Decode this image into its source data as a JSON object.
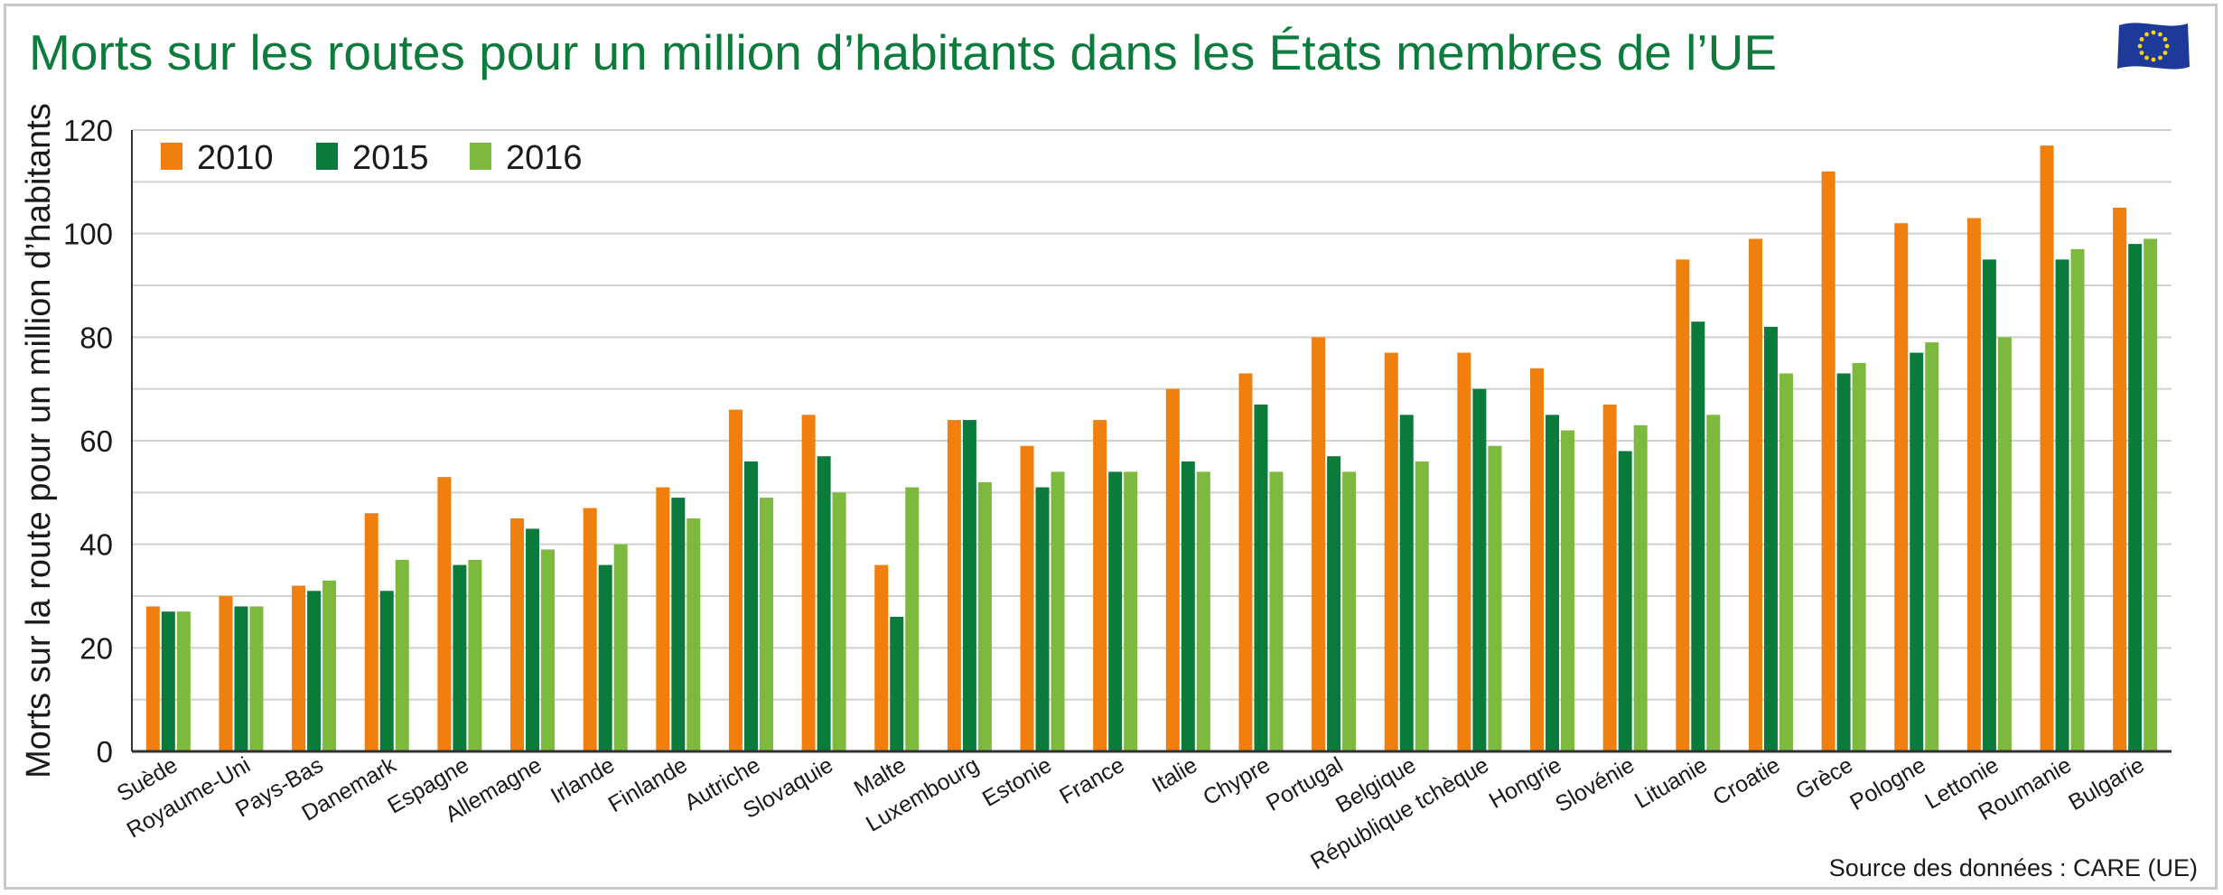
{
  "title": "Morts sur les routes pour un million d’habitants dans les États membres de l’UE",
  "source": "Source des données : CARE (UE)",
  "colors": {
    "title": "#0c7c3c",
    "s2010": "#f07f0e",
    "s2015": "#0a7b3a",
    "s2016": "#7cb93c",
    "grid": "#cfcfcf",
    "flag": "#1d3a9a",
    "stars": "#ffd400"
  },
  "icons": {
    "flag": "eu-flag-icon"
  },
  "chart_data": {
    "type": "bar",
    "ylabel": "Morts sur la route pour un million d’habitants",
    "xlabel": "",
    "ylim": [
      0,
      120
    ],
    "yticks": [
      0,
      20,
      40,
      60,
      80,
      100,
      120
    ],
    "grid": true,
    "legend_placement": "top-left",
    "categories": [
      "Suède",
      "Royaume-Uni",
      "Pays-Bas",
      "Danemark",
      "Espagne",
      "Allemagne",
      "Irlande",
      "Finlande",
      "Autriche",
      "Slovaquie",
      "Malte",
      "Luxembourg",
      "Estonie",
      "France",
      "Italie",
      "Chypre",
      "Portugal",
      "Belgique",
      "République tchèque",
      "Hongrie",
      "Slovénie",
      "Lituanie",
      "Croatie",
      "Grèce",
      "Pologne",
      "Lettonie",
      "Roumanie",
      "Bulgarie"
    ],
    "series": [
      {
        "name": "2010",
        "values": [
          28,
          30,
          32,
          46,
          53,
          45,
          47,
          51,
          66,
          65,
          36,
          64,
          59,
          64,
          70,
          73,
          80,
          77,
          77,
          74,
          67,
          95,
          99,
          112,
          102,
          103,
          117,
          105
        ]
      },
      {
        "name": "2015",
        "values": [
          27,
          28,
          31,
          31,
          36,
          43,
          36,
          49,
          56,
          57,
          26,
          64,
          51,
          54,
          56,
          67,
          57,
          65,
          70,
          65,
          58,
          83,
          82,
          73,
          77,
          95,
          95,
          98
        ]
      },
      {
        "name": "2016",
        "values": [
          27,
          28,
          33,
          37,
          37,
          39,
          40,
          45,
          49,
          50,
          51,
          52,
          54,
          54,
          54,
          54,
          54,
          56,
          59,
          62,
          63,
          65,
          73,
          75,
          79,
          80,
          97,
          99
        ]
      }
    ]
  }
}
